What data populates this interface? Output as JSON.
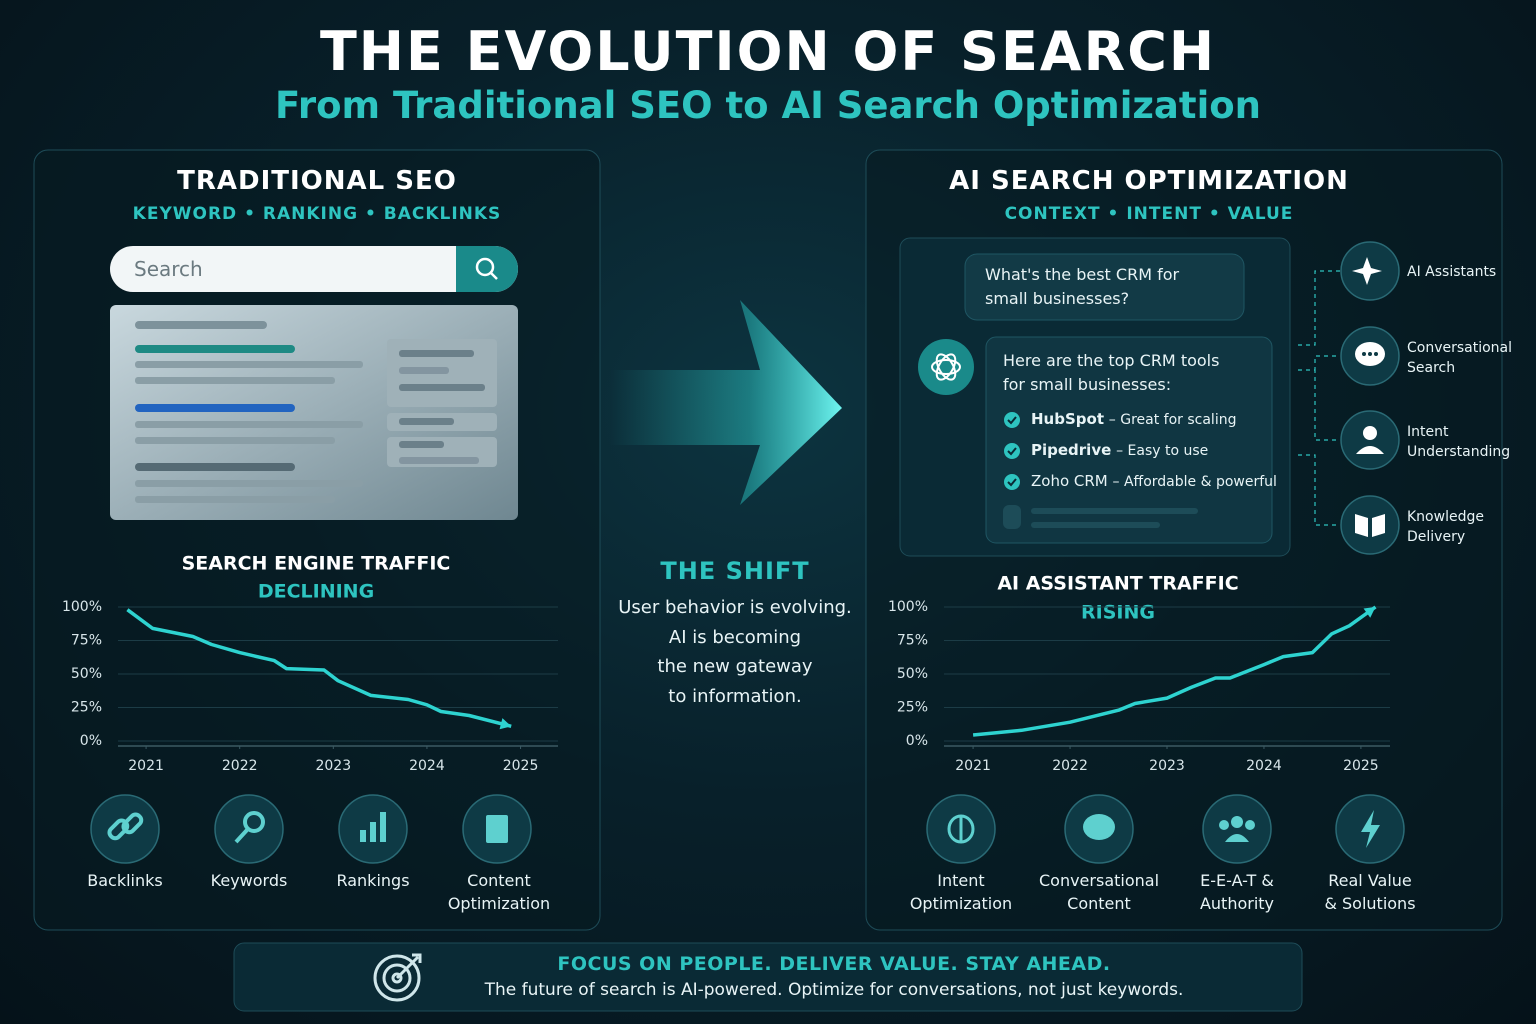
{
  "header": {
    "title": "THE EVOLUTION OF SEARCH",
    "subtitle": "From Traditional SEO to AI Search Optimization"
  },
  "traditional": {
    "title": "TRADITIONAL SEO",
    "tags": "KEYWORD • RANKING • BACKLINKS",
    "search_placeholder": "Search",
    "icons": [
      "Backlinks",
      "Keywords",
      "Rankings",
      "Content\nOptimization"
    ]
  },
  "shift": {
    "title": "THE SHIFT",
    "text": "User behavior is evolving.\nAI is becoming\nthe new gateway\nto information."
  },
  "ai": {
    "title": "AI SEARCH OPTIMIZATION",
    "tags": "CONTEXT • INTENT • VALUE",
    "question": "What's the best CRM for\nsmall businesses?",
    "answer_intro": "Here are the top CRM tools\nfor small businesses:",
    "answer_items": [
      {
        "name": "HubSpot",
        "desc": "– Great for scaling"
      },
      {
        "name": "Pipedrive",
        "desc": "– Easy to use"
      },
      {
        "name": "Zoho CRM",
        "desc": "– Affordable & powerful"
      }
    ],
    "features": [
      "AI Assistants",
      "Conversational\nSearch",
      "Intent\nUnderstanding",
      "Knowledge\nDelivery"
    ],
    "icons": [
      "Intent\nOptimization",
      "Conversational\nContent",
      "E-E-A-T &\nAuthority",
      "Real Value\n& Solutions"
    ]
  },
  "footer": {
    "headline": "FOCUS ON PEOPLE. DELIVER VALUE. STAY AHEAD.",
    "text": "The future of search is AI-powered. Optimize for conversations, not just keywords."
  },
  "chart_data": [
    {
      "type": "line",
      "title": "SEARCH ENGINE TRAFFIC",
      "subtitle": "DECLINING",
      "color": "#2ed3d0",
      "x": [
        2020.8,
        2021.07,
        2021.5,
        2021.7,
        2022.0,
        2022.37,
        2022.5,
        2022.9,
        2023.05,
        2023.4,
        2023.8,
        2024.0,
        2024.15,
        2024.45,
        2024.9
      ],
      "values": [
        98,
        84,
        78,
        72,
        66,
        60,
        54,
        53,
        45,
        34,
        31,
        27,
        22,
        19,
        11
      ],
      "xlim": [
        2020.7,
        2025.4
      ],
      "xticks": [
        2021,
        2022,
        2023,
        2024,
        2025
      ],
      "ylim": [
        0,
        100
      ],
      "yticks": [
        {
          "value": 0,
          "label": "0%"
        },
        {
          "value": 25,
          "label": "25%"
        },
        {
          "value": 50,
          "label": "50%"
        },
        {
          "value": 75,
          "label": "75%"
        },
        {
          "value": 100,
          "label": "100%"
        }
      ],
      "grid": true
    },
    {
      "type": "line",
      "title": "AI ASSISTANT TRAFFIC",
      "subtitle": "RISING",
      "color": "#2ed3d0",
      "x": [
        2021.0,
        2021.5,
        2022.0,
        2022.5,
        2022.67,
        2023.0,
        2023.25,
        2023.5,
        2023.65,
        2024.0,
        2024.2,
        2024.5,
        2024.7,
        2024.88,
        2025.15
      ],
      "values": [
        4.5,
        8,
        14,
        23,
        28,
        32,
        40,
        47,
        47,
        57,
        63,
        66,
        80,
        86,
        100
      ],
      "xlim": [
        2020.7,
        2025.3
      ],
      "xticks": [
        2021,
        2022,
        2023,
        2024,
        2025
      ],
      "ylim": [
        0,
        100
      ],
      "yticks": [
        {
          "value": 0,
          "label": "0%"
        },
        {
          "value": 25,
          "label": "25%"
        },
        {
          "value": 50,
          "label": "50%"
        },
        {
          "value": 75,
          "label": "75%"
        },
        {
          "value": 100,
          "label": "100%"
        }
      ],
      "grid": true
    }
  ]
}
